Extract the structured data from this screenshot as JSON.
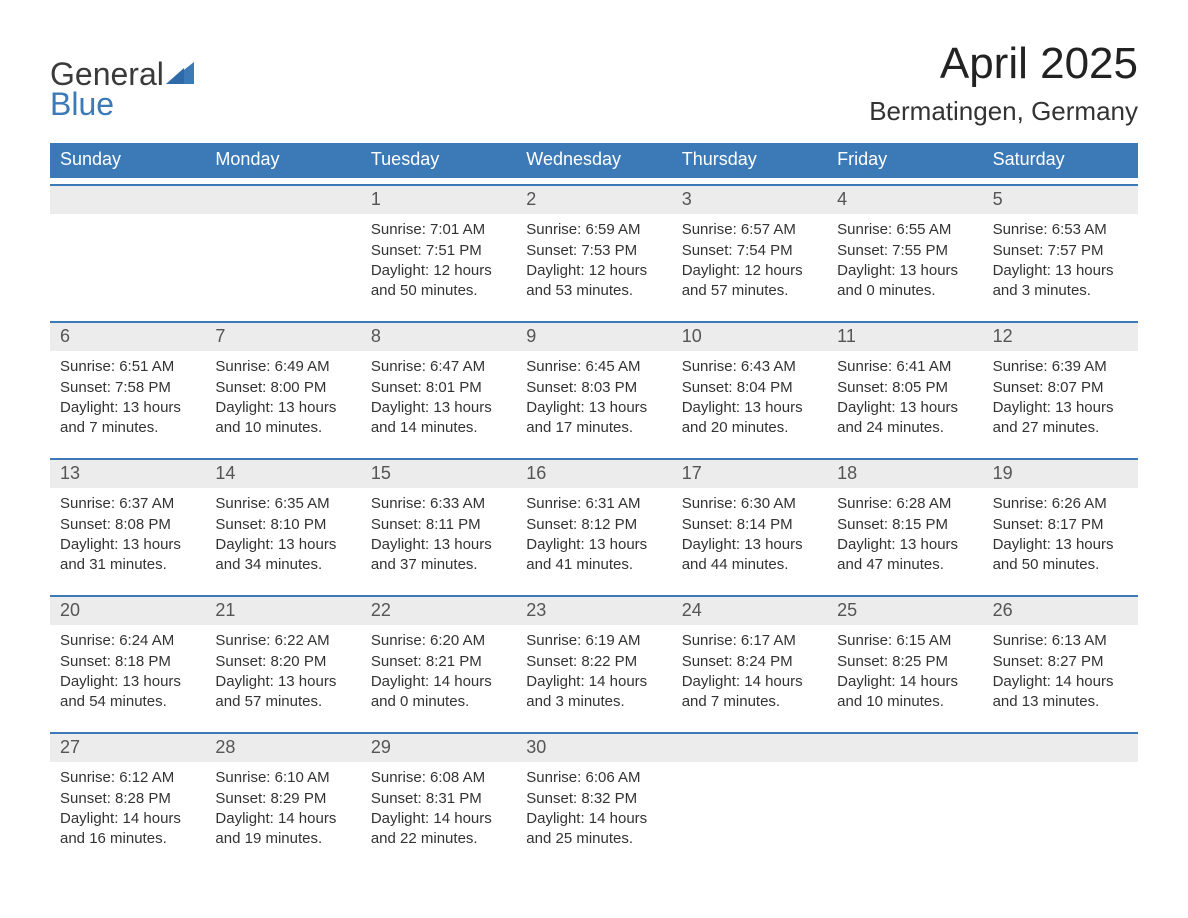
{
  "logo": {
    "line1": "General",
    "line2": "Blue",
    "flag_color": "#3b79b7"
  },
  "title": {
    "month": "April 2025",
    "location": "Bermatingen, Germany"
  },
  "colors": {
    "header_bg": "#3b79b7",
    "daynum_bg": "#ececec",
    "week_border": "#3b79b7",
    "text": "#333333",
    "daynum_text": "#555555"
  },
  "days_of_week": [
    "Sunday",
    "Monday",
    "Tuesday",
    "Wednesday",
    "Thursday",
    "Friday",
    "Saturday"
  ],
  "weeks": [
    {
      "cells": [
        {
          "day": "",
          "sunrise": "",
          "sunset": "",
          "daylight1": "",
          "daylight2": ""
        },
        {
          "day": "",
          "sunrise": "",
          "sunset": "",
          "daylight1": "",
          "daylight2": ""
        },
        {
          "day": "1",
          "sunrise": "Sunrise: 7:01 AM",
          "sunset": "Sunset: 7:51 PM",
          "daylight1": "Daylight: 12 hours",
          "daylight2": "and 50 minutes."
        },
        {
          "day": "2",
          "sunrise": "Sunrise: 6:59 AM",
          "sunset": "Sunset: 7:53 PM",
          "daylight1": "Daylight: 12 hours",
          "daylight2": "and 53 minutes."
        },
        {
          "day": "3",
          "sunrise": "Sunrise: 6:57 AM",
          "sunset": "Sunset: 7:54 PM",
          "daylight1": "Daylight: 12 hours",
          "daylight2": "and 57 minutes."
        },
        {
          "day": "4",
          "sunrise": "Sunrise: 6:55 AM",
          "sunset": "Sunset: 7:55 PM",
          "daylight1": "Daylight: 13 hours",
          "daylight2": "and 0 minutes."
        },
        {
          "day": "5",
          "sunrise": "Sunrise: 6:53 AM",
          "sunset": "Sunset: 7:57 PM",
          "daylight1": "Daylight: 13 hours",
          "daylight2": "and 3 minutes."
        }
      ]
    },
    {
      "cells": [
        {
          "day": "6",
          "sunrise": "Sunrise: 6:51 AM",
          "sunset": "Sunset: 7:58 PM",
          "daylight1": "Daylight: 13 hours",
          "daylight2": "and 7 minutes."
        },
        {
          "day": "7",
          "sunrise": "Sunrise: 6:49 AM",
          "sunset": "Sunset: 8:00 PM",
          "daylight1": "Daylight: 13 hours",
          "daylight2": "and 10 minutes."
        },
        {
          "day": "8",
          "sunrise": "Sunrise: 6:47 AM",
          "sunset": "Sunset: 8:01 PM",
          "daylight1": "Daylight: 13 hours",
          "daylight2": "and 14 minutes."
        },
        {
          "day": "9",
          "sunrise": "Sunrise: 6:45 AM",
          "sunset": "Sunset: 8:03 PM",
          "daylight1": "Daylight: 13 hours",
          "daylight2": "and 17 minutes."
        },
        {
          "day": "10",
          "sunrise": "Sunrise: 6:43 AM",
          "sunset": "Sunset: 8:04 PM",
          "daylight1": "Daylight: 13 hours",
          "daylight2": "and 20 minutes."
        },
        {
          "day": "11",
          "sunrise": "Sunrise: 6:41 AM",
          "sunset": "Sunset: 8:05 PM",
          "daylight1": "Daylight: 13 hours",
          "daylight2": "and 24 minutes."
        },
        {
          "day": "12",
          "sunrise": "Sunrise: 6:39 AM",
          "sunset": "Sunset: 8:07 PM",
          "daylight1": "Daylight: 13 hours",
          "daylight2": "and 27 minutes."
        }
      ]
    },
    {
      "cells": [
        {
          "day": "13",
          "sunrise": "Sunrise: 6:37 AM",
          "sunset": "Sunset: 8:08 PM",
          "daylight1": "Daylight: 13 hours",
          "daylight2": "and 31 minutes."
        },
        {
          "day": "14",
          "sunrise": "Sunrise: 6:35 AM",
          "sunset": "Sunset: 8:10 PM",
          "daylight1": "Daylight: 13 hours",
          "daylight2": "and 34 minutes."
        },
        {
          "day": "15",
          "sunrise": "Sunrise: 6:33 AM",
          "sunset": "Sunset: 8:11 PM",
          "daylight1": "Daylight: 13 hours",
          "daylight2": "and 37 minutes."
        },
        {
          "day": "16",
          "sunrise": "Sunrise: 6:31 AM",
          "sunset": "Sunset: 8:12 PM",
          "daylight1": "Daylight: 13 hours",
          "daylight2": "and 41 minutes."
        },
        {
          "day": "17",
          "sunrise": "Sunrise: 6:30 AM",
          "sunset": "Sunset: 8:14 PM",
          "daylight1": "Daylight: 13 hours",
          "daylight2": "and 44 minutes."
        },
        {
          "day": "18",
          "sunrise": "Sunrise: 6:28 AM",
          "sunset": "Sunset: 8:15 PM",
          "daylight1": "Daylight: 13 hours",
          "daylight2": "and 47 minutes."
        },
        {
          "day": "19",
          "sunrise": "Sunrise: 6:26 AM",
          "sunset": "Sunset: 8:17 PM",
          "daylight1": "Daylight: 13 hours",
          "daylight2": "and 50 minutes."
        }
      ]
    },
    {
      "cells": [
        {
          "day": "20",
          "sunrise": "Sunrise: 6:24 AM",
          "sunset": "Sunset: 8:18 PM",
          "daylight1": "Daylight: 13 hours",
          "daylight2": "and 54 minutes."
        },
        {
          "day": "21",
          "sunrise": "Sunrise: 6:22 AM",
          "sunset": "Sunset: 8:20 PM",
          "daylight1": "Daylight: 13 hours",
          "daylight2": "and 57 minutes."
        },
        {
          "day": "22",
          "sunrise": "Sunrise: 6:20 AM",
          "sunset": "Sunset: 8:21 PM",
          "daylight1": "Daylight: 14 hours",
          "daylight2": "and 0 minutes."
        },
        {
          "day": "23",
          "sunrise": "Sunrise: 6:19 AM",
          "sunset": "Sunset: 8:22 PM",
          "daylight1": "Daylight: 14 hours",
          "daylight2": "and 3 minutes."
        },
        {
          "day": "24",
          "sunrise": "Sunrise: 6:17 AM",
          "sunset": "Sunset: 8:24 PM",
          "daylight1": "Daylight: 14 hours",
          "daylight2": "and 7 minutes."
        },
        {
          "day": "25",
          "sunrise": "Sunrise: 6:15 AM",
          "sunset": "Sunset: 8:25 PM",
          "daylight1": "Daylight: 14 hours",
          "daylight2": "and 10 minutes."
        },
        {
          "day": "26",
          "sunrise": "Sunrise: 6:13 AM",
          "sunset": "Sunset: 8:27 PM",
          "daylight1": "Daylight: 14 hours",
          "daylight2": "and 13 minutes."
        }
      ]
    },
    {
      "cells": [
        {
          "day": "27",
          "sunrise": "Sunrise: 6:12 AM",
          "sunset": "Sunset: 8:28 PM",
          "daylight1": "Daylight: 14 hours",
          "daylight2": "and 16 minutes."
        },
        {
          "day": "28",
          "sunrise": "Sunrise: 6:10 AM",
          "sunset": "Sunset: 8:29 PM",
          "daylight1": "Daylight: 14 hours",
          "daylight2": "and 19 minutes."
        },
        {
          "day": "29",
          "sunrise": "Sunrise: 6:08 AM",
          "sunset": "Sunset: 8:31 PM",
          "daylight1": "Daylight: 14 hours",
          "daylight2": "and 22 minutes."
        },
        {
          "day": "30",
          "sunrise": "Sunrise: 6:06 AM",
          "sunset": "Sunset: 8:32 PM",
          "daylight1": "Daylight: 14 hours",
          "daylight2": "and 25 minutes."
        },
        {
          "day": "",
          "sunrise": "",
          "sunset": "",
          "daylight1": "",
          "daylight2": ""
        },
        {
          "day": "",
          "sunrise": "",
          "sunset": "",
          "daylight1": "",
          "daylight2": ""
        },
        {
          "day": "",
          "sunrise": "",
          "sunset": "",
          "daylight1": "",
          "daylight2": ""
        }
      ]
    }
  ]
}
